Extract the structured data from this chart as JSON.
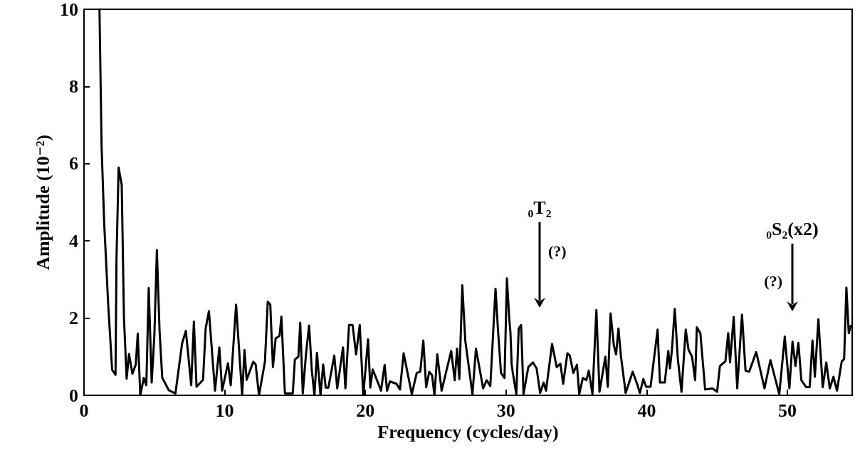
{
  "chart_data": {
    "type": "line",
    "xlabel": "Frequency (cycles/day)",
    "ylabel": "Amplitude (10⁻²)",
    "xlim": [
      0,
      54.6
    ],
    "xticks": [
      0,
      10,
      20,
      30,
      40,
      50
    ],
    "ylim": [
      0,
      10
    ],
    "yticks": [
      0,
      2,
      4,
      6,
      8,
      10
    ],
    "grid": false,
    "marker": "none",
    "line_style": "solid",
    "annotations": [
      "₀T₂",
      "(?)",
      "₀S₂(x2)",
      "(?)"
    ],
    "series": [
      {
        "color": "#000000",
        "x": [
          1.1,
          1.25,
          1.43,
          1.72,
          2.0,
          2.24,
          2.31,
          2.46,
          2.68,
          2.84,
          3.03,
          3.2,
          3.44,
          3.68,
          3.82,
          4.0,
          4.25,
          4.43,
          4.6,
          4.81,
          5.0,
          5.18,
          5.37,
          5.56,
          6.03,
          6.5,
          6.97,
          7.24,
          7.62,
          7.81,
          8.0,
          8.46,
          8.65,
          8.88,
          9.31,
          9.62,
          9.82,
          10.23,
          10.43,
          10.81,
          11.24,
          11.41,
          11.56,
          12.03,
          12.2,
          12.44,
          12.86,
          13.06,
          13.24,
          13.43,
          13.62,
          13.9,
          14.03,
          14.28,
          14.84,
          14.99,
          15.24,
          15.37,
          15.55,
          15.78,
          16.0,
          16.19,
          16.38,
          16.56,
          16.81,
          17.0,
          17.18,
          17.37,
          17.79,
          18.0,
          18.41,
          18.58,
          18.84,
          19.09,
          19.34,
          19.6,
          19.85,
          20.19,
          20.35,
          20.52,
          20.95,
          21.11,
          21.37,
          21.54,
          21.74,
          22.21,
          22.46,
          22.72,
          23.3,
          23.65,
          23.9,
          24.12,
          24.32,
          24.54,
          24.74,
          24.91,
          25.11,
          25.42,
          26.1,
          26.35,
          26.52,
          26.68,
          26.89,
          27.1,
          27.61,
          27.86,
          28.37,
          28.62,
          28.88,
          29.25,
          29.43,
          29.64,
          29.89,
          30.06,
          30.23,
          30.31,
          30.4,
          30.48,
          30.73,
          30.9,
          31.07,
          31.24,
          31.58,
          31.91,
          32.17,
          32.42,
          32.67,
          32.84,
          33.27,
          33.6,
          33.86,
          34.06,
          34.36,
          34.53,
          34.78,
          35.04,
          35.2,
          35.46,
          35.71,
          35.88,
          36.14,
          36.42,
          36.64,
          37.06,
          37.23,
          37.43,
          37.66,
          37.82,
          37.99,
          38.16,
          38.5,
          39.0,
          39.34,
          39.51,
          39.76,
          39.96,
          40.27,
          40.77,
          40.94,
          41.28,
          41.53,
          41.65,
          41.79,
          41.99,
          42.21,
          42.47,
          42.77,
          42.97,
          43.22,
          43.44,
          43.56,
          43.81,
          44.15,
          44.66,
          45.0,
          45.2,
          45.59,
          45.79,
          45.92,
          46.18,
          46.43,
          46.77,
          47.02,
          47.28,
          47.78,
          48.37,
          48.79,
          49.42,
          49.81,
          50.14,
          50.36,
          50.57,
          50.78,
          50.99,
          51.33,
          51.58,
          51.78,
          51.95,
          52.2,
          52.51,
          52.76,
          53.01,
          53.27,
          53.52,
          53.86,
          54.03,
          54.19,
          54.36,
          54.5
        ],
        "values": [
          10,
          6.45,
          4.5,
          2.35,
          0.66,
          0.53,
          3.55,
          5.9,
          5.45,
          2.0,
          0.43,
          1.07,
          0.56,
          0.8,
          1.6,
          0,
          0.45,
          0.26,
          2.78,
          0.33,
          1.54,
          3.76,
          1.67,
          0.46,
          0.13,
          0.05,
          1.34,
          1.67,
          0.26,
          1.91,
          0.22,
          0.4,
          1.74,
          2.18,
          0.12,
          1.24,
          0.12,
          0.83,
          0.26,
          2.35,
          0,
          1.17,
          0.4,
          0.87,
          0.8,
          0,
          0.87,
          2.42,
          2.35,
          0.73,
          1.47,
          1.54,
          2.04,
          0.05,
          0.05,
          0.93,
          1.0,
          1.88,
          0.05,
          1.07,
          1.81,
          0.66,
          0,
          1.1,
          0,
          0.8,
          0.2,
          0.2,
          1.03,
          0.18,
          1.24,
          0.18,
          1.82,
          1.82,
          1.06,
          1.82,
          0,
          1.45,
          0.2,
          0.67,
          0.28,
          0.12,
          0.79,
          0.12,
          0.36,
          0.3,
          0.15,
          1.09,
          0.03,
          0.58,
          0.61,
          1.42,
          0.21,
          0.61,
          0.52,
          0,
          1.06,
          0.12,
          1.15,
          0.39,
          1.21,
          0.42,
          2.85,
          1.42,
          0.03,
          1.21,
          0.18,
          0.39,
          0.24,
          2.76,
          1.67,
          0.58,
          0.45,
          3.03,
          1.97,
          1.64,
          0.8,
          0.58,
          0.03,
          1.73,
          1.82,
          0.03,
          0.73,
          0.85,
          0.7,
          0.06,
          0.33,
          0.12,
          1.33,
          0.73,
          0.82,
          0.3,
          1.09,
          1.03,
          0.58,
          0.79,
          0.03,
          0.45,
          0.39,
          0.64,
          0.03,
          2.21,
          0.09,
          1.0,
          0.22,
          2.12,
          1.3,
          1.06,
          1.73,
          1.03,
          0.06,
          0.61,
          0.27,
          0.06,
          0.42,
          0.22,
          0.22,
          1.7,
          0.33,
          0.33,
          1.15,
          0.7,
          1.18,
          2.24,
          0.94,
          0.09,
          1.7,
          1.18,
          1.0,
          0.39,
          1.76,
          1.61,
          0.15,
          0.18,
          0.09,
          0.76,
          0.88,
          1.61,
          0.85,
          2.03,
          0.18,
          2.09,
          0.64,
          0.61,
          1.12,
          0.18,
          0.91,
          0.03,
          1.52,
          0.18,
          1.39,
          0.76,
          1.36,
          0.39,
          0.21,
          0.21,
          1.42,
          0.48,
          1.97,
          0.21,
          0.85,
          0.18,
          0.48,
          0.12,
          0.88,
          0.94,
          2.79,
          1.61,
          1.8
        ]
      }
    ]
  }
}
